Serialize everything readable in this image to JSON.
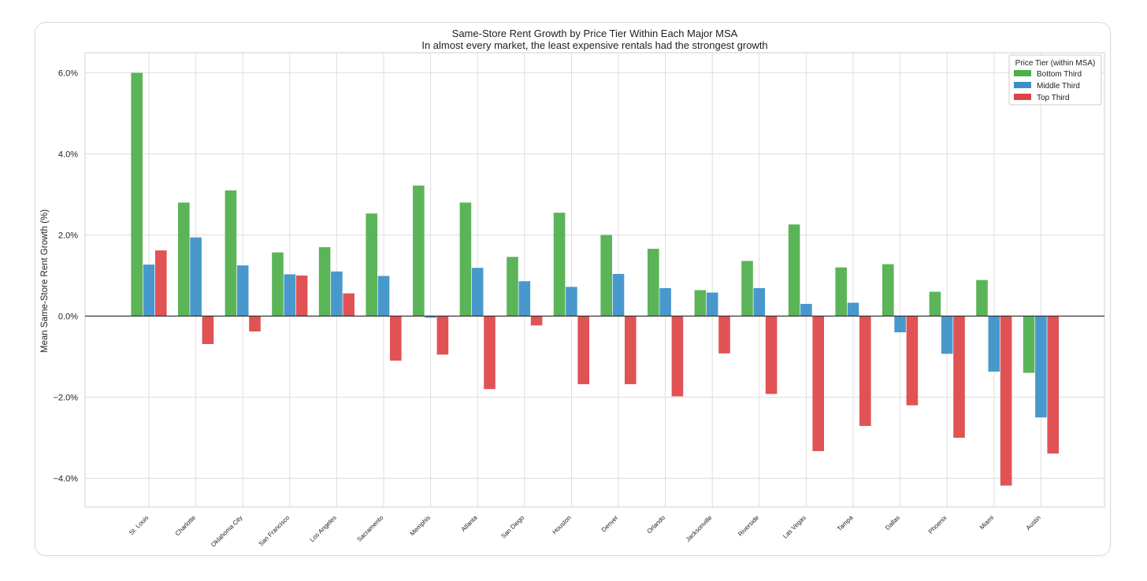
{
  "chart_data": {
    "type": "bar",
    "title": "Same-Store Rent Growth by Price Tier Within Each Major MSA",
    "subtitle": "In almost every market, the least expensive rentals had the strongest growth",
    "xlabel": "",
    "ylabel": "Mean Same-Store Rent Growth (%)",
    "ylim": [
      -4.7,
      6.5
    ],
    "yticks": [
      6.0,
      4.0,
      2.0,
      0.0,
      -2.0,
      -4.0
    ],
    "ytick_labels": [
      "6.0%",
      "4.0%",
      "2.0%",
      "0.0%",
      "−2.0%",
      "−4.0%"
    ],
    "grid": true,
    "legend_title": "Price Tier (within MSA)",
    "legend_position": "top-right",
    "categories": [
      "St. Louis",
      "Charlotte",
      "Oklahoma City",
      "San Francisco",
      "Los Angeles",
      "Sacramento",
      "Memphis",
      "Atlanta",
      "San Diego",
      "Houston",
      "Denver",
      "Orlando",
      "Jacksonville",
      "Riverside",
      "Las Vegas",
      "Tampa",
      "Dallas",
      "Phoenix",
      "Miami",
      "Austin"
    ],
    "series": [
      {
        "name": "Bottom Third",
        "color": "#4daf4a",
        "values": [
          6.0,
          2.8,
          3.1,
          1.57,
          1.7,
          2.53,
          3.22,
          2.8,
          1.46,
          2.55,
          2.0,
          1.66,
          0.64,
          1.36,
          2.26,
          1.2,
          1.28,
          0.6,
          0.89,
          -1.4
        ]
      },
      {
        "name": "Middle Third",
        "color": "#3a8fc9",
        "values": [
          1.27,
          1.94,
          1.25,
          1.03,
          1.1,
          0.99,
          -0.04,
          1.19,
          0.86,
          0.72,
          1.04,
          0.69,
          0.58,
          0.69,
          0.3,
          0.33,
          -0.4,
          -0.93,
          -1.37,
          -2.5
        ]
      },
      {
        "name": "Top Third",
        "color": "#de4346",
        "values": [
          1.62,
          -0.69,
          -0.38,
          1.0,
          0.56,
          -1.1,
          -0.95,
          -1.8,
          -0.23,
          -1.68,
          -1.68,
          -1.98,
          -0.92,
          -1.92,
          -3.33,
          -2.71,
          -2.2,
          -3.0,
          -4.18,
          -3.39
        ]
      }
    ]
  }
}
